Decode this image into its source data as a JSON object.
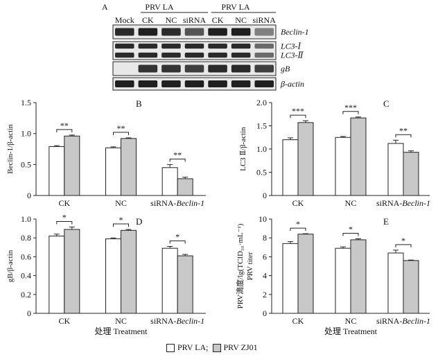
{
  "blot": {
    "panel_label": "A",
    "groups": [
      {
        "label": "PRV LA"
      },
      {
        "label": "PRV LA"
      }
    ],
    "lanes": [
      "Mock",
      "CK",
      "NC",
      "siRNA",
      "CK",
      "NC",
      "siRNA"
    ],
    "rows": [
      {
        "label": "Beclin-1",
        "intensity": [
          0.9,
          0.95,
          0.9,
          0.7,
          0.95,
          0.95,
          0.5
        ]
      },
      {
        "label": "LC3-Ⅰ",
        "intensity": [
          0.9,
          0.9,
          0.9,
          0.9,
          0.9,
          0.9,
          0.6
        ]
      },
      {
        "label": "LC3-Ⅱ",
        "intensity": [
          0.9,
          0.9,
          0.9,
          0.9,
          0.9,
          0.9,
          0.6
        ]
      },
      {
        "label": "gB",
        "intensity": [
          0.0,
          0.85,
          0.85,
          0.8,
          0.9,
          0.9,
          0.8
        ]
      },
      {
        "label": "β-actin",
        "intensity": [
          0.95,
          0.95,
          0.95,
          0.95,
          0.95,
          0.95,
          0.95
        ]
      }
    ]
  },
  "chart_data": [
    {
      "panel": "B",
      "type": "bar",
      "ylabel": "Beclin-1/β-actin",
      "ylim": [
        0,
        1.5
      ],
      "yticks": [
        "0",
        "0.5",
        "1.0",
        "1.5"
      ],
      "ytick_values": [
        0,
        0.5,
        1.0,
        1.5
      ],
      "categories": [
        "CK",
        "NC",
        "siRNA-"
      ],
      "category_suffix": [
        "",
        "",
        "Beclin-1"
      ],
      "series": [
        {
          "name": "PRV LA",
          "values": [
            0.79,
            0.77,
            0.45
          ],
          "errors": [
            0.015,
            0.015,
            0.05
          ]
        },
        {
          "name": "PRV ZJ01",
          "values": [
            0.96,
            0.92,
            0.27
          ],
          "errors": [
            0.015,
            0.01,
            0.025
          ]
        }
      ],
      "significance": [
        "**",
        "**",
        "**"
      ],
      "xlabel": ""
    },
    {
      "panel": "C",
      "type": "bar",
      "ylabel": "LC3 Ⅱ/β-actin",
      "ylim": [
        0,
        2.0
      ],
      "yticks": [
        "0",
        "0.5",
        "1.0",
        "1.5",
        "2.0"
      ],
      "ytick_values": [
        0,
        0.5,
        1.0,
        1.5,
        2.0
      ],
      "categories": [
        "CK",
        "NC",
        "siRNA-"
      ],
      "category_suffix": [
        "",
        "",
        "Beclin-1"
      ],
      "series": [
        {
          "name": "PRV LA",
          "values": [
            1.2,
            1.25,
            1.12
          ],
          "errors": [
            0.04,
            0.02,
            0.07
          ]
        },
        {
          "name": "PRV ZJ01",
          "values": [
            1.57,
            1.67,
            0.93
          ],
          "errors": [
            0.04,
            0.02,
            0.03
          ]
        }
      ],
      "significance": [
        "***",
        "***",
        "**"
      ],
      "xlabel": ""
    },
    {
      "panel": "D",
      "type": "bar",
      "ylabel": "gB/β-actin",
      "ylim": [
        0,
        1.0
      ],
      "yticks": [
        "0",
        "0.2",
        "0.4",
        "0.6",
        "0.8",
        "1.0"
      ],
      "ytick_values": [
        0,
        0.2,
        0.4,
        0.6,
        0.8,
        1.0
      ],
      "categories": [
        "CK",
        "NC",
        "siRNA-"
      ],
      "category_suffix": [
        "",
        "",
        "Beclin-1"
      ],
      "series": [
        {
          "name": "PRV LA",
          "values": [
            0.82,
            0.79,
            0.69
          ],
          "errors": [
            0.02,
            0.01,
            0.02
          ]
        },
        {
          "name": "PRV ZJ01",
          "values": [
            0.89,
            0.88,
            0.61
          ],
          "errors": [
            0.025,
            0.01,
            0.015
          ]
        }
      ],
      "significance": [
        "*",
        "*",
        "*"
      ],
      "xlabel": "处理 Treatment"
    },
    {
      "panel": "E",
      "type": "bar",
      "ylabel": "PRV滴度/lg(TCID₅₀·mL⁻¹)",
      "ylabel2": "PRV titer",
      "ylim": [
        0,
        10
      ],
      "yticks": [
        "0",
        "2",
        "4",
        "6",
        "8",
        "10"
      ],
      "ytick_values": [
        0,
        2,
        4,
        6,
        8,
        10
      ],
      "categories": [
        "CK",
        "NC",
        "siRNA-"
      ],
      "category_suffix": [
        "",
        "",
        "Beclin-1"
      ],
      "series": [
        {
          "name": "PRV LA",
          "values": [
            7.4,
            6.9,
            6.4
          ],
          "errors": [
            0.2,
            0.15,
            0.3
          ]
        },
        {
          "name": "PRV ZJ01",
          "values": [
            8.4,
            7.8,
            5.6
          ],
          "errors": [
            0.05,
            0.1,
            0.05
          ]
        }
      ],
      "significance": [
        "*",
        "*",
        "*"
      ],
      "xlabel": "处理 Treatment"
    }
  ],
  "legend": {
    "items": [
      {
        "label": "PRV LA;",
        "color": "#ffffff"
      },
      {
        "label": "PRV ZJ01",
        "color": "#c8c8c8"
      }
    ]
  }
}
